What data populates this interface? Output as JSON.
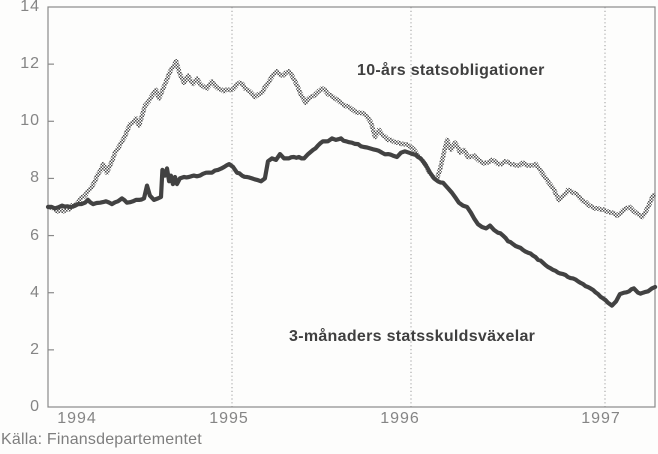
{
  "figure": {
    "source_caption": "Källa: Finansdepartementet"
  },
  "chart_data": {
    "type": "line",
    "title": "",
    "xlabel": "",
    "ylabel": "",
    "ylim": [
      0,
      14
    ],
    "x_range_years": [
      1994.0,
      1997.26
    ],
    "y_tick_labels": [
      "0",
      "2",
      "4",
      "6",
      "8",
      "10",
      "12",
      "14"
    ],
    "x_tick_labels": [
      "1994",
      "1995",
      "1996",
      "1997"
    ],
    "grid": {
      "vertical_dotted_at_years": [
        1995,
        1996,
        1997
      ],
      "horizontal": false
    },
    "legend_position": "labels-inside-plot",
    "colors": {
      "bond_line_stipple": "#4f4f4f",
      "bill_line": "#424242",
      "axis": "#8a8a8a",
      "tick_text": "#858585",
      "annotation_text": "#3f3f3f",
      "background": "#fdfdfc"
    },
    "series": [
      {
        "name": "10-års statsobligationer",
        "style": "stippled",
        "points": [
          [
            1994.0,
            7.0
          ],
          [
            1994.05,
            6.85
          ],
          [
            1994.1,
            6.9
          ],
          [
            1994.163,
            7.15
          ],
          [
            1994.217,
            7.55
          ],
          [
            1994.255,
            7.9
          ],
          [
            1994.3,
            8.5
          ],
          [
            1994.32,
            8.2
          ],
          [
            1994.364,
            8.9
          ],
          [
            1994.402,
            9.3
          ],
          [
            1994.446,
            9.9
          ],
          [
            1994.478,
            10.1
          ],
          [
            1994.495,
            9.85
          ],
          [
            1994.527,
            10.55
          ],
          [
            1994.565,
            10.9
          ],
          [
            1994.587,
            11.1
          ],
          [
            1994.603,
            10.8
          ],
          [
            1994.636,
            11.3
          ],
          [
            1994.668,
            11.8
          ],
          [
            1994.696,
            12.1
          ],
          [
            1994.717,
            11.65
          ],
          [
            1994.739,
            11.35
          ],
          [
            1994.761,
            11.6
          ],
          [
            1994.788,
            11.3
          ],
          [
            1994.81,
            11.5
          ],
          [
            1994.837,
            11.25
          ],
          [
            1994.864,
            11.15
          ],
          [
            1994.891,
            11.4
          ],
          [
            1994.924,
            11.15
          ],
          [
            1994.957,
            11.05
          ],
          [
            1995.0,
            11.1
          ],
          [
            1995.045,
            11.35
          ],
          [
            1995.089,
            11.1
          ],
          [
            1995.128,
            10.85
          ],
          [
            1995.168,
            11.0
          ],
          [
            1995.212,
            11.45
          ],
          [
            1995.251,
            11.75
          ],
          [
            1995.285,
            11.6
          ],
          [
            1995.318,
            11.75
          ],
          [
            1995.352,
            11.4
          ],
          [
            1995.38,
            11.0
          ],
          [
            1995.413,
            10.65
          ],
          [
            1995.441,
            10.85
          ],
          [
            1995.475,
            11.0
          ],
          [
            1995.503,
            11.15
          ],
          [
            1995.536,
            10.95
          ],
          [
            1995.575,
            10.8
          ],
          [
            1995.62,
            10.6
          ],
          [
            1995.665,
            10.45
          ],
          [
            1995.71,
            10.3
          ],
          [
            1995.749,
            10.2
          ],
          [
            1995.777,
            9.95
          ],
          [
            1995.799,
            9.45
          ],
          [
            1995.821,
            9.7
          ],
          [
            1995.844,
            9.5
          ],
          [
            1995.872,
            9.35
          ],
          [
            1995.899,
            9.3
          ],
          [
            1995.927,
            9.25
          ],
          [
            1995.961,
            9.2
          ],
          [
            1996.0,
            9.1
          ],
          [
            1996.031,
            8.85
          ],
          [
            1996.062,
            8.6
          ],
          [
            1996.088,
            8.3
          ],
          [
            1996.113,
            8.05
          ],
          [
            1996.134,
            8.0
          ],
          [
            1996.16,
            8.6
          ],
          [
            1996.186,
            9.35
          ],
          [
            1996.206,
            9.0
          ],
          [
            1996.227,
            9.25
          ],
          [
            1996.253,
            8.9
          ],
          [
            1996.273,
            9.0
          ],
          [
            1996.294,
            8.75
          ],
          [
            1996.325,
            8.8
          ],
          [
            1996.356,
            8.6
          ],
          [
            1996.392,
            8.55
          ],
          [
            1996.418,
            8.65
          ],
          [
            1996.448,
            8.5
          ],
          [
            1996.485,
            8.6
          ],
          [
            1996.515,
            8.5
          ],
          [
            1996.546,
            8.45
          ],
          [
            1996.577,
            8.55
          ],
          [
            1996.613,
            8.45
          ],
          [
            1996.644,
            8.5
          ],
          [
            1996.67,
            8.25
          ],
          [
            1996.696,
            8.0
          ],
          [
            1996.722,
            7.75
          ],
          [
            1996.747,
            7.45
          ],
          [
            1996.763,
            7.25
          ],
          [
            1996.784,
            7.4
          ],
          [
            1996.809,
            7.6
          ],
          [
            1996.835,
            7.5
          ],
          [
            1996.861,
            7.4
          ],
          [
            1996.887,
            7.2
          ],
          [
            1996.918,
            7.05
          ],
          [
            1996.948,
            6.95
          ],
          [
            1996.979,
            6.9
          ],
          [
            1997.01,
            6.85
          ],
          [
            1997.036,
            6.8
          ],
          [
            1997.062,
            6.7
          ],
          [
            1997.082,
            6.8
          ],
          [
            1997.108,
            6.95
          ],
          [
            1997.129,
            7.0
          ],
          [
            1997.149,
            6.85
          ],
          [
            1997.17,
            6.75
          ],
          [
            1997.191,
            6.65
          ],
          [
            1997.211,
            6.85
          ],
          [
            1997.232,
            7.15
          ],
          [
            1997.247,
            7.4
          ],
          [
            1997.258,
            7.45
          ]
        ]
      },
      {
        "name": "3-månaders statsskuldsväxelar",
        "style": "solid",
        "points": [
          [
            1994.0,
            7.0
          ],
          [
            1994.038,
            6.95
          ],
          [
            1994.076,
            7.05
          ],
          [
            1994.12,
            7.0
          ],
          [
            1994.163,
            7.1
          ],
          [
            1994.201,
            7.15
          ],
          [
            1994.217,
            7.25
          ],
          [
            1994.245,
            7.1
          ],
          [
            1994.283,
            7.15
          ],
          [
            1994.315,
            7.2
          ],
          [
            1994.348,
            7.1
          ],
          [
            1994.38,
            7.2
          ],
          [
            1994.402,
            7.3
          ],
          [
            1994.429,
            7.15
          ],
          [
            1994.462,
            7.2
          ],
          [
            1994.495,
            7.25
          ],
          [
            1994.522,
            7.3
          ],
          [
            1994.538,
            7.75
          ],
          [
            1994.554,
            7.4
          ],
          [
            1994.576,
            7.25
          ],
          [
            1994.598,
            7.3
          ],
          [
            1994.614,
            7.35
          ],
          [
            1994.622,
            8.3
          ],
          [
            1994.636,
            8.1
          ],
          [
            1994.647,
            8.35
          ],
          [
            1994.658,
            7.9
          ],
          [
            1994.668,
            8.1
          ],
          [
            1994.679,
            7.8
          ],
          [
            1994.69,
            8.05
          ],
          [
            1994.701,
            7.8
          ],
          [
            1994.717,
            8.0
          ],
          [
            1994.739,
            8.05
          ],
          [
            1994.766,
            8.05
          ],
          [
            1994.793,
            8.1
          ],
          [
            1994.826,
            8.1
          ],
          [
            1994.859,
            8.2
          ],
          [
            1994.891,
            8.2
          ],
          [
            1994.924,
            8.3
          ],
          [
            1994.957,
            8.4
          ],
          [
            1994.984,
            8.5
          ],
          [
            1995.006,
            8.4
          ],
          [
            1995.028,
            8.2
          ],
          [
            1995.056,
            8.1
          ],
          [
            1995.084,
            8.05
          ],
          [
            1995.112,
            8.0
          ],
          [
            1995.14,
            7.95
          ],
          [
            1995.162,
            7.9
          ],
          [
            1995.184,
            8.0
          ],
          [
            1995.201,
            8.6
          ],
          [
            1995.223,
            8.7
          ],
          [
            1995.246,
            8.65
          ],
          [
            1995.268,
            8.85
          ],
          [
            1995.291,
            8.7
          ],
          [
            1995.318,
            8.7
          ],
          [
            1995.346,
            8.75
          ],
          [
            1995.374,
            8.75
          ],
          [
            1995.402,
            8.7
          ],
          [
            1995.425,
            8.85
          ],
          [
            1995.453,
            9.0
          ],
          [
            1995.48,
            9.15
          ],
          [
            1995.508,
            9.3
          ],
          [
            1995.536,
            9.3
          ],
          [
            1995.559,
            9.4
          ],
          [
            1995.581,
            9.35
          ],
          [
            1995.609,
            9.4
          ],
          [
            1995.637,
            9.3
          ],
          [
            1995.67,
            9.25
          ],
          [
            1995.704,
            9.2
          ],
          [
            1995.737,
            9.1
          ],
          [
            1995.771,
            9.05
          ],
          [
            1995.804,
            9.0
          ],
          [
            1995.838,
            8.9
          ],
          [
            1995.872,
            8.85
          ],
          [
            1995.899,
            8.8
          ],
          [
            1995.922,
            8.75
          ],
          [
            1995.944,
            8.9
          ],
          [
            1995.966,
            8.95
          ],
          [
            1995.989,
            8.9
          ],
          [
            1996.01,
            8.85
          ],
          [
            1996.036,
            8.75
          ],
          [
            1996.062,
            8.6
          ],
          [
            1996.082,
            8.4
          ],
          [
            1996.098,
            8.2
          ],
          [
            1996.119,
            8.0
          ],
          [
            1996.139,
            7.9
          ],
          [
            1996.165,
            7.85
          ],
          [
            1996.191,
            7.65
          ],
          [
            1996.211,
            7.5
          ],
          [
            1996.232,
            7.3
          ],
          [
            1996.247,
            7.15
          ],
          [
            1996.268,
            7.05
          ],
          [
            1996.289,
            7.0
          ],
          [
            1996.309,
            6.8
          ],
          [
            1996.325,
            6.6
          ],
          [
            1996.345,
            6.4
          ],
          [
            1996.366,
            6.3
          ],
          [
            1996.387,
            6.25
          ],
          [
            1996.407,
            6.35
          ],
          [
            1996.428,
            6.2
          ],
          [
            1996.448,
            6.1
          ],
          [
            1996.474,
            6.0
          ],
          [
            1996.5,
            5.8
          ],
          [
            1996.526,
            5.7
          ],
          [
            1996.552,
            5.6
          ],
          [
            1996.577,
            5.5
          ],
          [
            1996.603,
            5.4
          ],
          [
            1996.629,
            5.3
          ],
          [
            1996.655,
            5.15
          ],
          [
            1996.68,
            5.05
          ],
          [
            1996.706,
            4.9
          ],
          [
            1996.732,
            4.8
          ],
          [
            1996.758,
            4.7
          ],
          [
            1996.784,
            4.65
          ],
          [
            1996.809,
            4.55
          ],
          [
            1996.835,
            4.5
          ],
          [
            1996.861,
            4.4
          ],
          [
            1996.887,
            4.3
          ],
          [
            1996.912,
            4.2
          ],
          [
            1996.938,
            4.1
          ],
          [
            1996.964,
            3.95
          ],
          [
            1996.99,
            3.8
          ],
          [
            1997.015,
            3.65
          ],
          [
            1997.036,
            3.55
          ],
          [
            1997.057,
            3.7
          ],
          [
            1997.077,
            3.95
          ],
          [
            1997.098,
            4.0
          ],
          [
            1997.124,
            4.05
          ],
          [
            1997.149,
            4.15
          ],
          [
            1997.17,
            4.0
          ],
          [
            1997.196,
            4.0
          ],
          [
            1997.222,
            4.05
          ],
          [
            1997.242,
            4.15
          ],
          [
            1997.258,
            4.2
          ]
        ]
      }
    ]
  }
}
